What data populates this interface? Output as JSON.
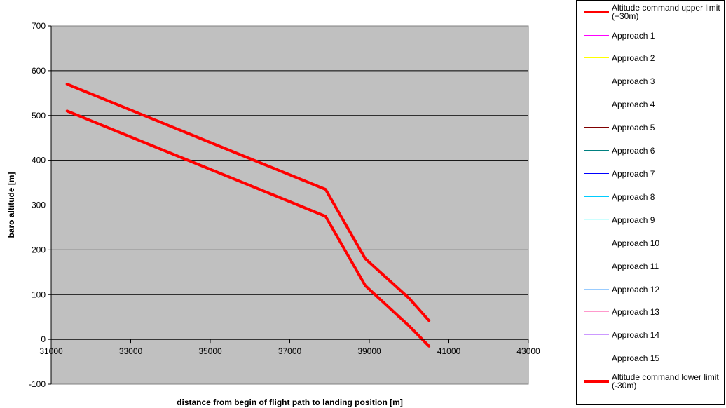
{
  "chart_data": {
    "type": "line",
    "xlabel": "distance from begin of flight path to landing position [m]",
    "ylabel": "baro altitude [m]",
    "xlim": [
      31000,
      43000
    ],
    "ylim": [
      -100,
      700
    ],
    "x_ticks": [
      31000,
      33000,
      35000,
      37000,
      39000,
      41000,
      43000
    ],
    "y_ticks": [
      -100,
      0,
      100,
      200,
      300,
      400,
      500,
      600,
      700
    ],
    "grid": "horizontal",
    "plot_background": "#C0C0C0",
    "legend_position": "right",
    "series": [
      {
        "name": "Altitude command upper limit (+30m)",
        "color": "#FF0000",
        "width": 4,
        "x": [
          31400,
          37900,
          38900,
          40000,
          40500
        ],
        "y": [
          570,
          335,
          180,
          92,
          42
        ]
      },
      {
        "name": "Approach 1",
        "color": "#FF00FF",
        "width": 1,
        "x": [],
        "y": []
      },
      {
        "name": "Approach 2",
        "color": "#FFFF00",
        "width": 1,
        "x": [],
        "y": []
      },
      {
        "name": "Approach 3",
        "color": "#00FFFF",
        "width": 1,
        "x": [],
        "y": []
      },
      {
        "name": "Approach 4",
        "color": "#800080",
        "width": 1,
        "x": [],
        "y": []
      },
      {
        "name": "Approach 5",
        "color": "#800000",
        "width": 1,
        "x": [],
        "y": []
      },
      {
        "name": "Approach 6",
        "color": "#008080",
        "width": 1,
        "x": [],
        "y": []
      },
      {
        "name": "Approach 7",
        "color": "#0000FF",
        "width": 1,
        "x": [],
        "y": []
      },
      {
        "name": "Approach 8",
        "color": "#00CCFF",
        "width": 1,
        "x": [],
        "y": []
      },
      {
        "name": "Approach 9",
        "color": "#CCFFFF",
        "width": 1,
        "x": [],
        "y": []
      },
      {
        "name": "Approach 10",
        "color": "#CCFFCC",
        "width": 1,
        "x": [],
        "y": []
      },
      {
        "name": "Approach 11",
        "color": "#FFFF99",
        "width": 1,
        "x": [],
        "y": []
      },
      {
        "name": "Approach 12",
        "color": "#99CCFF",
        "width": 1,
        "x": [],
        "y": []
      },
      {
        "name": "Approach 13",
        "color": "#FF99CC",
        "width": 1,
        "x": [],
        "y": []
      },
      {
        "name": "Approach 14",
        "color": "#CC99FF",
        "width": 1,
        "x": [],
        "y": []
      },
      {
        "name": "Approach 15",
        "color": "#FFCC99",
        "width": 1,
        "x": [],
        "y": []
      },
      {
        "name": "Altitude command lower limit (-30m)",
        "color": "#FF0000",
        "width": 4,
        "x": [
          31400,
          37900,
          38900,
          40000,
          40500
        ],
        "y": [
          510,
          275,
          120,
          30,
          -15
        ]
      }
    ]
  }
}
